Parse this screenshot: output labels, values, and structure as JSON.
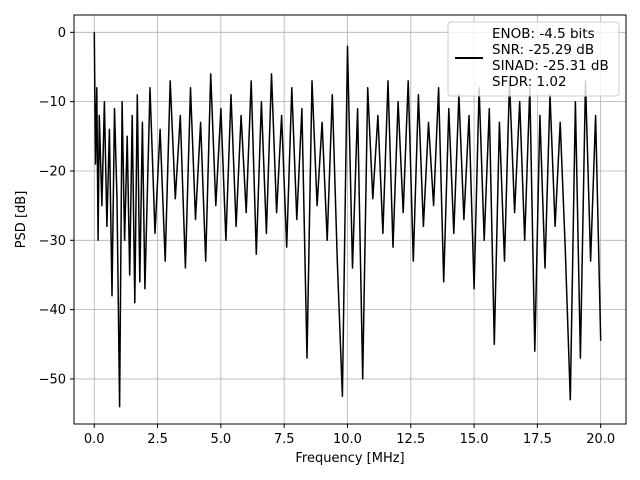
{
  "chart_data": {
    "type": "line",
    "xlabel": "Frequency [MHz]",
    "ylabel": "PSD [dB]",
    "xlim": [
      -0.8,
      21.0
    ],
    "ylim": [
      -56.5,
      2.5
    ],
    "xticks": [
      0.0,
      2.5,
      5.0,
      7.5,
      10.0,
      12.5,
      15.0,
      17.5,
      20.0
    ],
    "xtick_labels": [
      "0.0",
      "2.5",
      "5.0",
      "7.5",
      "10.0",
      "12.5",
      "15.0",
      "17.5",
      "20.0"
    ],
    "yticks": [
      0,
      -10,
      -20,
      -30,
      -40,
      -50
    ],
    "ytick_labels": [
      "0",
      "−10",
      "−20",
      "−30",
      "−40",
      "−50"
    ],
    "grid": true,
    "legend_position": "upper-right",
    "series": [
      {
        "name": "ENOB: -4.5 bits\nSNR: -25.29 dB\nSINAD: -25.31 dB\nSFDR: 1.02",
        "legend_lines": [
          "ENOB: -4.5 bits",
          "SNR: -25.29 dB",
          "SINAD: -25.31 dB",
          "SFDR: 1.02"
        ],
        "color": "#000000",
        "x": [
          0.0,
          0.05,
          0.1,
          0.15,
          0.2,
          0.3,
          0.4,
          0.5,
          0.6,
          0.7,
          0.8,
          0.9,
          1.0,
          1.1,
          1.2,
          1.3,
          1.4,
          1.5,
          1.6,
          1.7,
          1.8,
          1.9,
          2.0,
          2.2,
          2.4,
          2.6,
          2.8,
          3.0,
          3.2,
          3.4,
          3.6,
          3.8,
          4.0,
          4.2,
          4.4,
          4.6,
          4.8,
          5.0,
          5.2,
          5.4,
          5.6,
          5.8,
          6.0,
          6.2,
          6.4,
          6.6,
          6.8,
          7.0,
          7.2,
          7.4,
          7.6,
          7.8,
          8.0,
          8.2,
          8.4,
          8.6,
          8.8,
          9.0,
          9.2,
          9.4,
          9.6,
          9.8,
          10.0,
          10.2,
          10.4,
          10.6,
          10.8,
          11.0,
          11.2,
          11.4,
          11.6,
          11.8,
          12.0,
          12.2,
          12.4,
          12.6,
          12.8,
          13.0,
          13.2,
          13.4,
          13.6,
          13.8,
          14.0,
          14.2,
          14.4,
          14.6,
          14.8,
          15.0,
          15.2,
          15.4,
          15.6,
          15.8,
          16.0,
          16.2,
          16.4,
          16.6,
          16.8,
          17.0,
          17.2,
          17.4,
          17.6,
          17.8,
          18.0,
          18.2,
          18.4,
          18.6,
          18.8,
          19.0,
          19.2,
          19.4,
          19.6,
          19.8,
          20.0
        ],
        "y": [
          0.0,
          -19.0,
          -8.0,
          -30.0,
          -12.0,
          -25.0,
          -10.0,
          -28.0,
          -14.0,
          -38.0,
          -11.0,
          -24.0,
          -54.0,
          -10.0,
          -30.0,
          -15.0,
          -35.0,
          -12.0,
          -39.0,
          -9.0,
          -36.0,
          -13.0,
          -37.0,
          -8.0,
          -29.0,
          -14.0,
          -33.0,
          -7.0,
          -24.0,
          -12.0,
          -34.0,
          -8.0,
          -27.0,
          -13.0,
          -33.0,
          -6.0,
          -25.0,
          -11.0,
          -30.0,
          -9.0,
          -28.0,
          -12.0,
          -26.0,
          -7.0,
          -32.0,
          -10.0,
          -29.0,
          -6.0,
          -26.0,
          -12.0,
          -31.0,
          -8.0,
          -27.0,
          -11.0,
          -47.0,
          -7.0,
          -25.0,
          -13.0,
          -30.0,
          -9.0,
          -33.0,
          -52.5,
          -2.0,
          -34.0,
          -11.0,
          -50.0,
          -8.0,
          -24.0,
          -12.0,
          -29.0,
          -7.0,
          -31.0,
          -10.0,
          -26.0,
          -7.0,
          -33.0,
          -9.0,
          -28.0,
          -13.0,
          -25.0,
          -8.0,
          -36.0,
          -11.0,
          -29.0,
          -9.0,
          -27.0,
          -12.0,
          -37.0,
          -8.0,
          -30.0,
          -11.0,
          -45.0,
          -13.0,
          -33.0,
          -7.0,
          -26.0,
          -10.0,
          -30.0,
          -8.0,
          -46.0,
          -12.0,
          -34.0,
          -9.0,
          -28.0,
          -13.0,
          -31.0,
          -53.0,
          -10.0,
          -47.0,
          -7.0,
          -33.0,
          -12.0,
          -44.5
        ]
      }
    ]
  }
}
